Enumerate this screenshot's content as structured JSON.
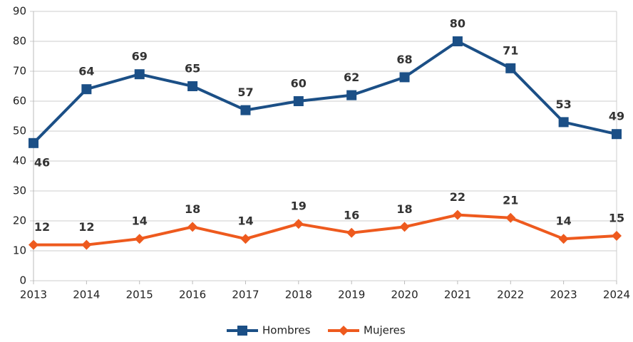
{
  "chart_data": {
    "type": "line",
    "categories": [
      "2013",
      "2014",
      "2015",
      "2016",
      "2017",
      "2018",
      "2019",
      "2020",
      "2021",
      "2022",
      "2023",
      "2024"
    ],
    "series": [
      {
        "name": "Hombres",
        "color": "#1b4f86",
        "marker": "square",
        "values": [
          46,
          64,
          69,
          65,
          57,
          60,
          62,
          68,
          80,
          71,
          53,
          49
        ]
      },
      {
        "name": "Mujeres",
        "color": "#ee5a1e",
        "marker": "diamond",
        "values": [
          12,
          12,
          14,
          18,
          14,
          19,
          16,
          18,
          22,
          21,
          14,
          15
        ]
      }
    ],
    "ylim": [
      0,
      90
    ],
    "yticks": [
      0,
      10,
      20,
      30,
      40,
      50,
      60,
      70,
      80,
      90
    ],
    "grid": true,
    "legend": "bottom"
  }
}
